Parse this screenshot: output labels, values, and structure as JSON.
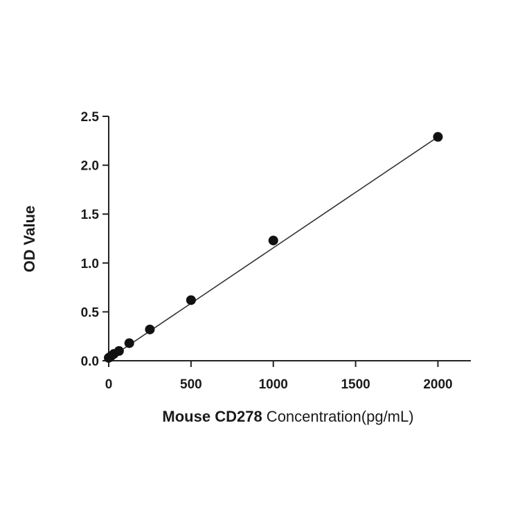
{
  "chart_data": {
    "type": "scatter",
    "title": "",
    "xlabel": "Mouse CD278 Concentration(pg/mL)",
    "xlabel_bold_part": "Mouse CD278",
    "xlabel_rest": "Concentration(pg/mL)",
    "ylabel": "OD Value",
    "xlim": [
      0,
      2200
    ],
    "ylim": [
      0,
      2.5
    ],
    "x_ticks": [
      0,
      500,
      1000,
      1500,
      2000
    ],
    "x_tick_labels": [
      "0",
      "500",
      "1000",
      "1500",
      "2000"
    ],
    "y_ticks": [
      0,
      0.5,
      1,
      1.5,
      2,
      2.5
    ],
    "y_tick_labels": [
      "0.0",
      "0.5",
      "1.0",
      "1.5",
      "2.0",
      "2.5"
    ],
    "grid": false,
    "series": [
      {
        "points": [
          {
            "x": 0,
            "y": 0.03
          },
          {
            "x": 15.6,
            "y": 0.05
          },
          {
            "x": 31.25,
            "y": 0.07
          },
          {
            "x": 62.5,
            "y": 0.1
          },
          {
            "x": 125,
            "y": 0.18
          },
          {
            "x": 250,
            "y": 0.32
          },
          {
            "x": 500,
            "y": 0.62
          },
          {
            "x": 1000,
            "y": 1.23
          },
          {
            "x": 2000,
            "y": 2.29
          }
        ],
        "fit_line": {
          "x": [
            0,
            2000
          ],
          "y": [
            0.02,
            2.29
          ]
        },
        "color": "#111111",
        "line_color": "#333333"
      }
    ]
  }
}
